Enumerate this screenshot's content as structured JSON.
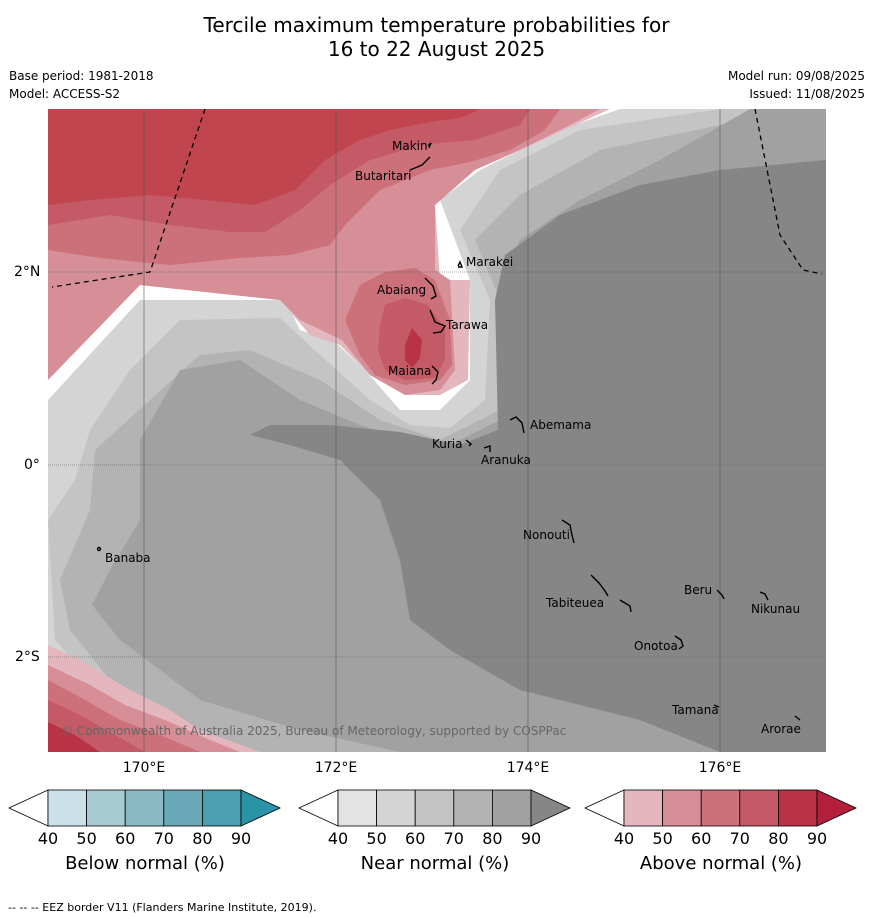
{
  "title": {
    "line1": "Tercile maximum temperature probabilities for",
    "line2": "16 to 22 August 2025"
  },
  "meta": {
    "base_period": "Base period: 1981-2018",
    "model": "Model: ACCESS-S2",
    "model_run": "Model run: 09/08/2025",
    "issued": "Issued: 11/08/2025"
  },
  "map": {
    "lat_labels": [
      "2°N",
      "0°",
      "2°S"
    ],
    "lon_labels": [
      "170°E",
      "172°E",
      "174°E",
      "176°E"
    ],
    "copyright": "© Commonwealth of Australia 2025, Bureau of Meteorology, supported by COSPPac",
    "places": [
      "Makin",
      "Butaritari",
      "Marakei",
      "Abaiang",
      "Tarawa",
      "Maiana",
      "Abemama",
      "Kuria",
      "Aranuka",
      "Nonouti",
      "Banaba",
      "Beru",
      "Tabiteuea",
      "Nikunau",
      "Onotoa",
      "Tamana",
      "Arorae"
    ]
  },
  "colorbars": [
    {
      "title": "Below normal (%)",
      "ticks": [
        "40",
        "50",
        "60",
        "70",
        "80",
        "90"
      ],
      "colors": [
        "#c9e1e7",
        "#a8cad1",
        "#8ab8c3",
        "#6aa8b7",
        "#4aa0b0",
        "#2a93a6"
      ]
    },
    {
      "title": "Near normal (%)",
      "ticks": [
        "40",
        "50",
        "60",
        "70",
        "80",
        "90"
      ],
      "colors": [
        "#e3e3e3",
        "#d4d4d4",
        "#c4c4c4",
        "#b3b3b3",
        "#a1a1a1",
        "#868686"
      ]
    },
    {
      "title": "Above normal (%)",
      "ticks": [
        "40",
        "50",
        "60",
        "70",
        "80",
        "90"
      ],
      "colors": [
        "#e4b6bd",
        "#d68e97",
        "#cc7079",
        "#c35a66",
        "#b83346",
        "#b41f3b"
      ]
    }
  ],
  "footnote": "--  --  -- EEZ border V11 (Flanders Marine Institute, 2019)."
}
